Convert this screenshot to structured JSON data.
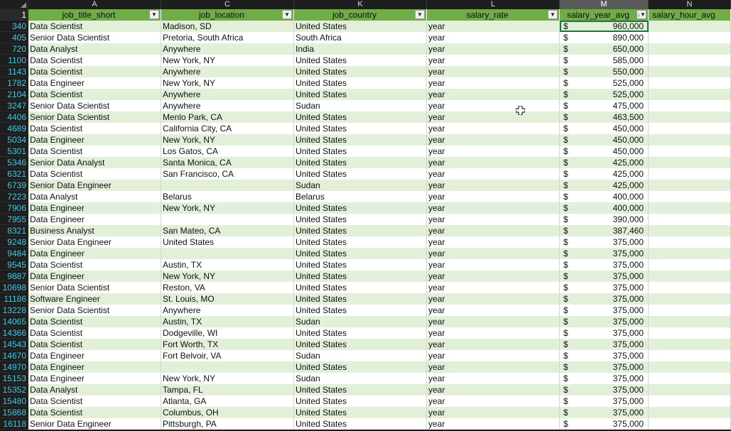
{
  "columns": [
    "A",
    "C",
    "K",
    "L",
    "M",
    "N"
  ],
  "selected_column": "M",
  "header_row_number": "1",
  "headers": [
    "job_title_short",
    "job_location",
    "job_country",
    "salary_rate",
    "salary_year_avg",
    "salary_hour_avg"
  ],
  "currency_symbol": "$",
  "rows": [
    {
      "n": "340",
      "title": "Data Scientist",
      "loc": "Madison, SD",
      "country": "United States",
      "rate": "year",
      "salary": "960,000"
    },
    {
      "n": "405",
      "title": "Senior Data Scientist",
      "loc": "Pretoria, South Africa",
      "country": "South Africa",
      "rate": "year",
      "salary": "890,000"
    },
    {
      "n": "720",
      "title": "Data Analyst",
      "loc": "Anywhere",
      "country": "India",
      "rate": "year",
      "salary": "650,000"
    },
    {
      "n": "1100",
      "title": "Data Scientist",
      "loc": "New York, NY",
      "country": "United States",
      "rate": "year",
      "salary": "585,000"
    },
    {
      "n": "1143",
      "title": "Data Scientist",
      "loc": "Anywhere",
      "country": "United States",
      "rate": "year",
      "salary": "550,000"
    },
    {
      "n": "1782",
      "title": "Data Engineer",
      "loc": "New York, NY",
      "country": "United States",
      "rate": "year",
      "salary": "525,000"
    },
    {
      "n": "2104",
      "title": "Data Scientist",
      "loc": "Anywhere",
      "country": "United States",
      "rate": "year",
      "salary": "525,000"
    },
    {
      "n": "3247",
      "title": "Senior Data Scientist",
      "loc": "Anywhere",
      "country": "Sudan",
      "rate": "year",
      "salary": "475,000"
    },
    {
      "n": "4406",
      "title": "Senior Data Scientist",
      "loc": "Menlo Park, CA",
      "country": "United States",
      "rate": "year",
      "salary": "463,500"
    },
    {
      "n": "4689",
      "title": "Data Scientist",
      "loc": "California City, CA",
      "country": "United States",
      "rate": "year",
      "salary": "450,000"
    },
    {
      "n": "5034",
      "title": "Data Engineer",
      "loc": "New York, NY",
      "country": "United States",
      "rate": "year",
      "salary": "450,000"
    },
    {
      "n": "5301",
      "title": "Data Scientist",
      "loc": "Los Gatos, CA",
      "country": "United States",
      "rate": "year",
      "salary": "450,000"
    },
    {
      "n": "5346",
      "title": "Senior Data Analyst",
      "loc": "Santa Monica, CA",
      "country": "United States",
      "rate": "year",
      "salary": "425,000"
    },
    {
      "n": "6321",
      "title": "Data Scientist",
      "loc": "San Francisco, CA",
      "country": "United States",
      "rate": "year",
      "salary": "425,000"
    },
    {
      "n": "6739",
      "title": "Senior Data Engineer",
      "loc": "",
      "country": "Sudan",
      "rate": "year",
      "salary": "425,000"
    },
    {
      "n": "7223",
      "title": "Data Analyst",
      "loc": "Belarus",
      "country": "Belarus",
      "rate": "year",
      "salary": "400,000"
    },
    {
      "n": "7906",
      "title": "Data Engineer",
      "loc": "New York, NY",
      "country": "United States",
      "rate": "year",
      "salary": "400,000"
    },
    {
      "n": "7955",
      "title": "Data Engineer",
      "loc": "",
      "country": "United States",
      "rate": "year",
      "salary": "390,000"
    },
    {
      "n": "8321",
      "title": "Business Analyst",
      "loc": "San Mateo, CA",
      "country": "United States",
      "rate": "year",
      "salary": "387,460"
    },
    {
      "n": "9248",
      "title": "Senior Data Engineer",
      "loc": "United States",
      "country": "United States",
      "rate": "year",
      "salary": "375,000"
    },
    {
      "n": "9484",
      "title": "Data Engineer",
      "loc": "",
      "country": "United States",
      "rate": "year",
      "salary": "375,000"
    },
    {
      "n": "9545",
      "title": "Data Scientist",
      "loc": "Austin, TX",
      "country": "United States",
      "rate": "year",
      "salary": "375,000"
    },
    {
      "n": "9887",
      "title": "Data Engineer",
      "loc": "New York, NY",
      "country": "United States",
      "rate": "year",
      "salary": "375,000"
    },
    {
      "n": "10698",
      "title": "Senior Data Scientist",
      "loc": "Reston, VA",
      "country": "United States",
      "rate": "year",
      "salary": "375,000"
    },
    {
      "n": "11186",
      "title": "Software Engineer",
      "loc": "St. Louis, MO",
      "country": "United States",
      "rate": "year",
      "salary": "375,000"
    },
    {
      "n": "13228",
      "title": "Senior Data Scientist",
      "loc": "Anywhere",
      "country": "United States",
      "rate": "year",
      "salary": "375,000"
    },
    {
      "n": "14065",
      "title": "Data Scientist",
      "loc": "Austin, TX",
      "country": "Sudan",
      "rate": "year",
      "salary": "375,000"
    },
    {
      "n": "14366",
      "title": "Data Scientist",
      "loc": "Dodgeville, WI",
      "country": "United States",
      "rate": "year",
      "salary": "375,000"
    },
    {
      "n": "14543",
      "title": "Data Scientist",
      "loc": "Fort Worth, TX",
      "country": "United States",
      "rate": "year",
      "salary": "375,000"
    },
    {
      "n": "14670",
      "title": "Data Engineer",
      "loc": "Fort Belvoir, VA",
      "country": "Sudan",
      "rate": "year",
      "salary": "375,000"
    },
    {
      "n": "14970",
      "title": "Data Engineer",
      "loc": "",
      "country": "United States",
      "rate": "year",
      "salary": "375,000"
    },
    {
      "n": "15153",
      "title": "Data Engineer",
      "loc": "New York, NY",
      "country": "Sudan",
      "rate": "year",
      "salary": "375,000"
    },
    {
      "n": "15352",
      "title": "Data Analyst",
      "loc": "Tampa, FL",
      "country": "United States",
      "rate": "year",
      "salary": "375,000"
    },
    {
      "n": "15480",
      "title": "Data Scientist",
      "loc": "Atlanta, GA",
      "country": "United States",
      "rate": "year",
      "salary": "375,000"
    },
    {
      "n": "15868",
      "title": "Data Scientist",
      "loc": "Columbus, OH",
      "country": "United States",
      "rate": "year",
      "salary": "375,000"
    },
    {
      "n": "16118",
      "title": "Senior Data Engineer",
      "loc": "Pittsburgh, PA",
      "country": "United States",
      "rate": "year",
      "salary": "375,000"
    }
  ],
  "colors": {
    "header_fill": "#70ad47",
    "band_fill": "#e2efd9",
    "row_number": "#3ac9e8",
    "selection": "#217346"
  }
}
